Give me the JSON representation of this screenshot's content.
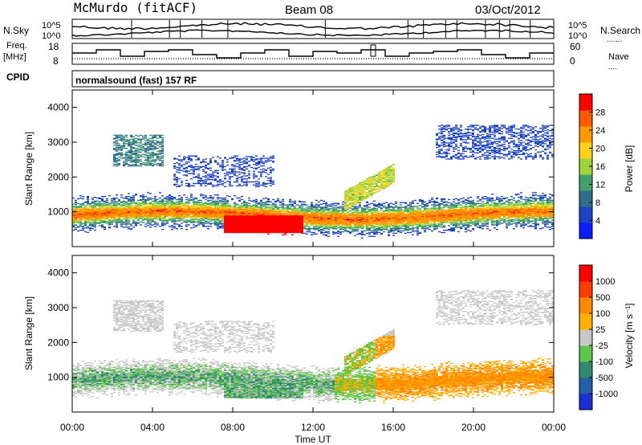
{
  "header": {
    "station": "McMurdo (fitACF)",
    "beam": "Beam 08",
    "date": "03/Oct/2012"
  },
  "noise_panel": {
    "left_label": "N.Sky",
    "right_label": "N.Search",
    "right_dots": ".......",
    "left_ticks": [
      "10^5",
      "10^0"
    ],
    "right_ticks": [
      "10^5",
      "10^0"
    ]
  },
  "freq_panel": {
    "left_label_1": "Freq.",
    "left_label_2": "[MHz]",
    "left_ticks": [
      "18",
      "8"
    ],
    "right_label": "Nave",
    "right_dots": "....",
    "right_ticks": [
      "60",
      "0"
    ]
  },
  "cpid": {
    "label": "CPID",
    "value": "normalsound (fast) 157 RF"
  },
  "x_axis": {
    "title": "Time UT",
    "ticks": [
      "00:00",
      "04:00",
      "08:00",
      "12:00",
      "16:00",
      "20:00",
      "00:00"
    ]
  },
  "power_panel": {
    "ylabel": "Slant Range [km]",
    "yticks": [
      "4000",
      "3000",
      "2000",
      "1000"
    ],
    "colorbar_label": "Power [dB]",
    "colorbar_ticks": [
      "28",
      "24",
      "20",
      "16",
      "12",
      "8",
      "4"
    ],
    "colors": [
      "#0a1eff",
      "#1d43c4",
      "#2f6f8c",
      "#41a06a",
      "#9fd43a",
      "#ffd21a",
      "#ff9900",
      "#ff5a00",
      "#ff0000"
    ]
  },
  "velocity_panel": {
    "ylabel": "Slant Range [km]",
    "yticks": [
      "4000",
      "3000",
      "2000",
      "1000"
    ],
    "colorbar_label": "Velocity [m s⁻¹]",
    "colorbar_ticks": [
      "1000",
      "500",
      "100",
      "25",
      "-25",
      "-100",
      "-500",
      "-1000"
    ],
    "colors": [
      "#1a2fd6",
      "#2460a8",
      "#2f8a6e",
      "#5ec44b",
      "#c8c8c8",
      "#ffb000",
      "#ff8a00",
      "#ff3c00",
      "#ff0000"
    ]
  },
  "chart_data": {
    "type": "heatmap",
    "title": "McMurdo (fitACF)",
    "x_range": [
      "00:00",
      "00:00"
    ],
    "xlabel": "Time UT",
    "ylabel": "Slant Range [km]",
    "ylim_km": [
      0,
      4500
    ],
    "echo_bands": [
      {
        "time_h": [
          0,
          24
        ],
        "range_km": [
          500,
          1500
        ],
        "description": "main scatter band"
      },
      {
        "time_h": [
          7.5,
          11.5
        ],
        "range_km": [
          400,
          900
        ],
        "description": "strongest power near 28 dB"
      },
      {
        "time_h": [
          13.5,
          16
        ],
        "range_km": [
          1300,
          2200
        ],
        "description": "rising band"
      },
      {
        "time_h": [
          2,
          4.5
        ],
        "range_km": [
          2300,
          3200
        ],
        "description": "patches"
      },
      {
        "time_h": [
          18,
          24
        ],
        "range_km": [
          2500,
          3500
        ],
        "description": "weak far echoes"
      }
    ],
    "power_scale_db": [
      0,
      30
    ],
    "velocity_scale": [
      -1000,
      1000
    ]
  }
}
